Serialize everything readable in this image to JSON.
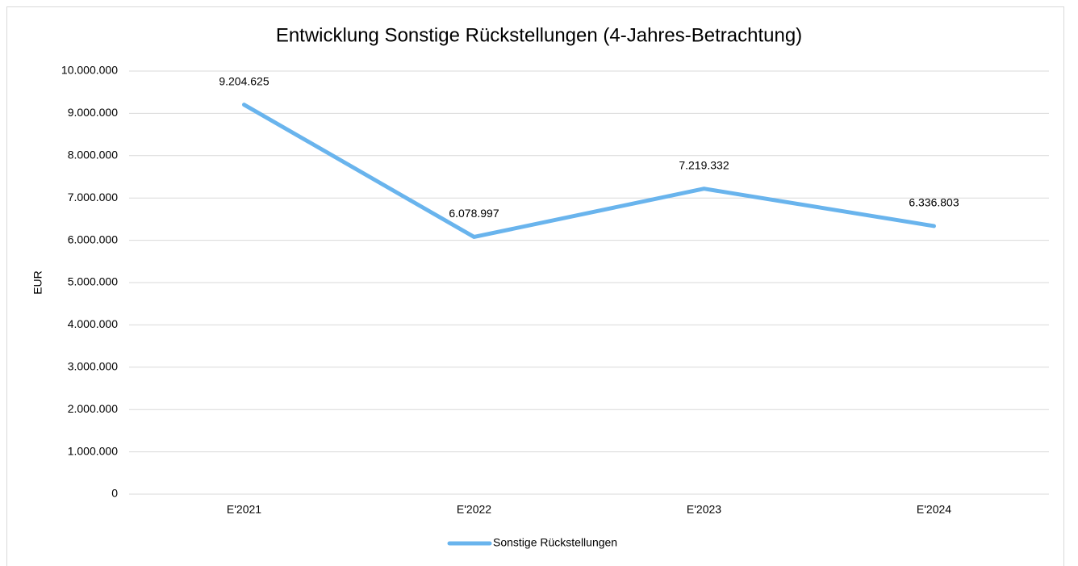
{
  "chart_data": {
    "type": "line",
    "title": "Entwicklung Sonstige Rückstellungen (4-Jahres-Betrachtung)",
    "y_label": "EUR",
    "categories": [
      "E'2021",
      "E'2022",
      "E'2023",
      "E'2024"
    ],
    "series": [
      {
        "name": "Sonstige Rückstellungen",
        "color": "#69b4ed",
        "values": [
          9204625,
          6078997,
          7219332,
          6336803
        ],
        "value_labels": [
          "9.204.625",
          "6.078.997",
          "7.219.332",
          "6.336.803"
        ]
      }
    ],
    "ylim": [
      0,
      10000000
    ],
    "yticks": [
      0,
      {
        "value": 1000000,
        "label": "1.000.000"
      },
      {
        "value": 2000000,
        "label": "2.000.000"
      },
      {
        "value": 3000000,
        "label": "3.000.000"
      },
      {
        "value": 4000000,
        "label": "4.000.000"
      },
      {
        "value": 5000000,
        "label": "5.000.000"
      },
      {
        "value": 6000000,
        "label": "6.000.000"
      },
      {
        "value": 7000000,
        "label": "7.000.000"
      },
      {
        "value": 8000000,
        "label": "8.000.000"
      },
      {
        "value": 9000000,
        "label": "9.000.000"
      },
      {
        "value": 10000000,
        "label": "10.000.000"
      }
    ],
    "grid": true,
    "legend": "bottom"
  }
}
